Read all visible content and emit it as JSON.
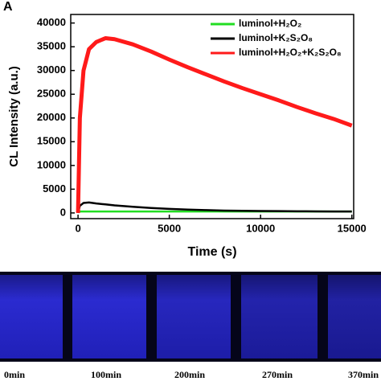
{
  "chart_data": {
    "type": "line",
    "panel_label": "A",
    "x_label": "Time (s)",
    "y_label": "CL Intensity (a.u.)",
    "x": [
      0,
      100,
      300,
      600,
      1000,
      1500,
      2000,
      3000,
      4000,
      5000,
      6000,
      7000,
      8000,
      9000,
      10000,
      11000,
      12000,
      13000,
      14000,
      15000
    ],
    "series": [
      {
        "name": "luminol+H₂O₂",
        "color": "#22dd22",
        "values": [
          200,
          300,
          300,
          300,
          300,
          300,
          300,
          300,
          300,
          300,
          300,
          300,
          300,
          300,
          300,
          300,
          300,
          300,
          300,
          300
        ]
      },
      {
        "name": "luminol+K₂S₂O₈",
        "color": "#000000",
        "values": [
          0,
          1500,
          2100,
          2200,
          2000,
          1800,
          1600,
          1300,
          1050,
          850,
          700,
          600,
          500,
          450,
          400,
          380,
          350,
          330,
          310,
          300
        ]
      },
      {
        "name": "luminol+H₂O₂+K₂S₂O₈",
        "color": "#ff1a1a",
        "values": [
          0,
          20000,
          30000,
          34500,
          36000,
          36800,
          36600,
          35500,
          34000,
          32300,
          30700,
          29200,
          27700,
          26300,
          25000,
          23700,
          22300,
          21000,
          19800,
          18400
        ]
      }
    ],
    "xlim": [
      -400,
      15100
    ],
    "ylim": [
      -1200,
      41800
    ],
    "xticks": [
      0,
      5000,
      10000,
      15000
    ],
    "yticks": [
      0,
      5000,
      10000,
      15000,
      20000,
      25000,
      30000,
      35000,
      40000
    ],
    "legend": "upper right"
  },
  "image_strip": {
    "labels": [
      "0min",
      "100min",
      "200min",
      "270min",
      "370min"
    ]
  }
}
